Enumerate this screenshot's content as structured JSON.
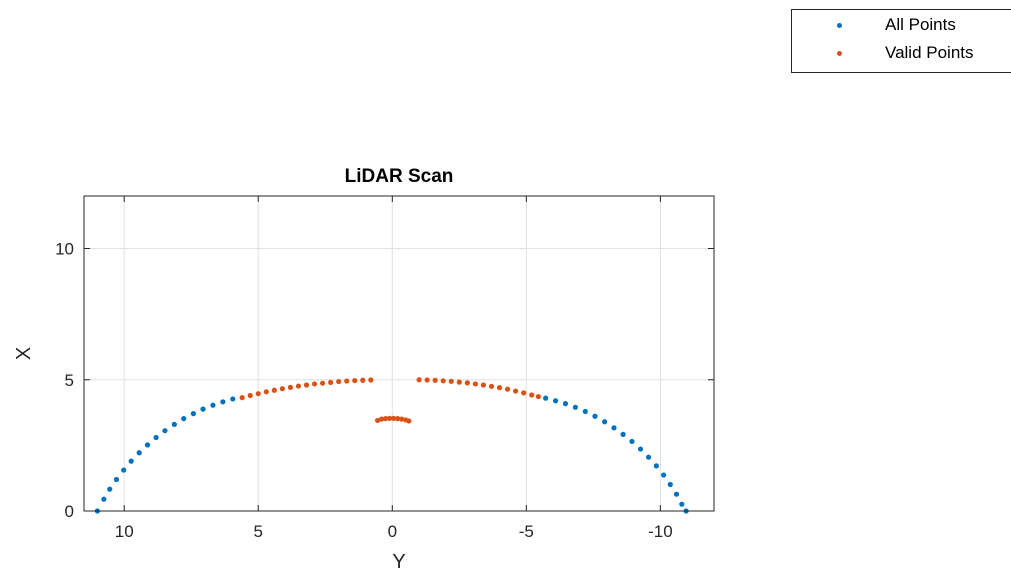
{
  "chart_data": {
    "type": "scatter",
    "title": "LiDAR Scan",
    "xlabel": "Y",
    "ylabel": "X",
    "xlim": [
      11.5,
      -12
    ],
    "ylim": [
      0,
      12
    ],
    "x_reversed": true,
    "xticks": [
      10,
      5,
      0,
      -5,
      -10
    ],
    "xtick_labels": [
      "10",
      "5",
      "0",
      "-5",
      "-10"
    ],
    "yticks": [
      0,
      5,
      10
    ],
    "ytick_labels": [
      "0",
      "5",
      "10"
    ],
    "grid": true,
    "legend_position": "top-right",
    "series": [
      {
        "name": "All Points",
        "color": "#0072BD",
        "points": [
          [
            11.0,
            0.0
          ],
          [
            10.76,
            0.45
          ],
          [
            10.54,
            0.83
          ],
          [
            10.29,
            1.2
          ],
          [
            10.02,
            1.56
          ],
          [
            9.74,
            1.9
          ],
          [
            9.44,
            2.22
          ],
          [
            9.13,
            2.52
          ],
          [
            8.81,
            2.8
          ],
          [
            8.48,
            3.06
          ],
          [
            8.13,
            3.3
          ],
          [
            7.78,
            3.52
          ],
          [
            7.42,
            3.71
          ],
          [
            7.06,
            3.88
          ],
          [
            6.69,
            4.03
          ],
          [
            6.32,
            4.16
          ],
          [
            5.95,
            4.27
          ],
          [
            -5.72,
            4.3
          ],
          [
            -6.09,
            4.2
          ],
          [
            -6.46,
            4.09
          ],
          [
            -6.83,
            3.95
          ],
          [
            -7.2,
            3.79
          ],
          [
            -7.56,
            3.61
          ],
          [
            -7.92,
            3.4
          ],
          [
            -8.27,
            3.17
          ],
          [
            -8.61,
            2.92
          ],
          [
            -8.94,
            2.65
          ],
          [
            -9.26,
            2.36
          ],
          [
            -9.56,
            2.05
          ],
          [
            -9.85,
            1.72
          ],
          [
            -10.12,
            1.37
          ],
          [
            -10.37,
            1.01
          ],
          [
            -10.6,
            0.64
          ],
          [
            -10.8,
            0.26
          ],
          [
            -10.96,
            0.0
          ]
        ]
      },
      {
        "name": "Valid Points",
        "color": "#D95319",
        "points": [
          [
            5.6,
            4.32
          ],
          [
            5.3,
            4.4
          ],
          [
            5.0,
            4.47
          ],
          [
            4.7,
            4.54
          ],
          [
            4.4,
            4.6
          ],
          [
            4.1,
            4.66
          ],
          [
            3.8,
            4.71
          ],
          [
            3.5,
            4.76
          ],
          [
            3.2,
            4.8
          ],
          [
            2.9,
            4.84
          ],
          [
            2.6,
            4.87
          ],
          [
            2.3,
            4.9
          ],
          [
            2.0,
            4.93
          ],
          [
            1.7,
            4.95
          ],
          [
            1.4,
            4.97
          ],
          [
            1.1,
            4.98
          ],
          [
            0.8,
            4.99
          ],
          [
            -1.0,
            5.0
          ],
          [
            -1.3,
            4.99
          ],
          [
            -1.6,
            4.98
          ],
          [
            -1.9,
            4.96
          ],
          [
            -2.2,
            4.94
          ],
          [
            -2.5,
            4.91
          ],
          [
            -2.8,
            4.88
          ],
          [
            -3.1,
            4.84
          ],
          [
            -3.4,
            4.8
          ],
          [
            -3.7,
            4.75
          ],
          [
            -4.0,
            4.7
          ],
          [
            -4.3,
            4.64
          ],
          [
            -4.6,
            4.57
          ],
          [
            -4.9,
            4.5
          ],
          [
            -5.2,
            4.42
          ],
          [
            -5.45,
            4.36
          ],
          [
            0.55,
            3.45
          ],
          [
            0.4,
            3.5
          ],
          [
            0.25,
            3.52
          ],
          [
            0.1,
            3.53
          ],
          [
            -0.05,
            3.53
          ],
          [
            -0.2,
            3.52
          ],
          [
            -0.35,
            3.5
          ],
          [
            -0.5,
            3.47
          ],
          [
            -0.62,
            3.43
          ]
        ]
      }
    ]
  }
}
